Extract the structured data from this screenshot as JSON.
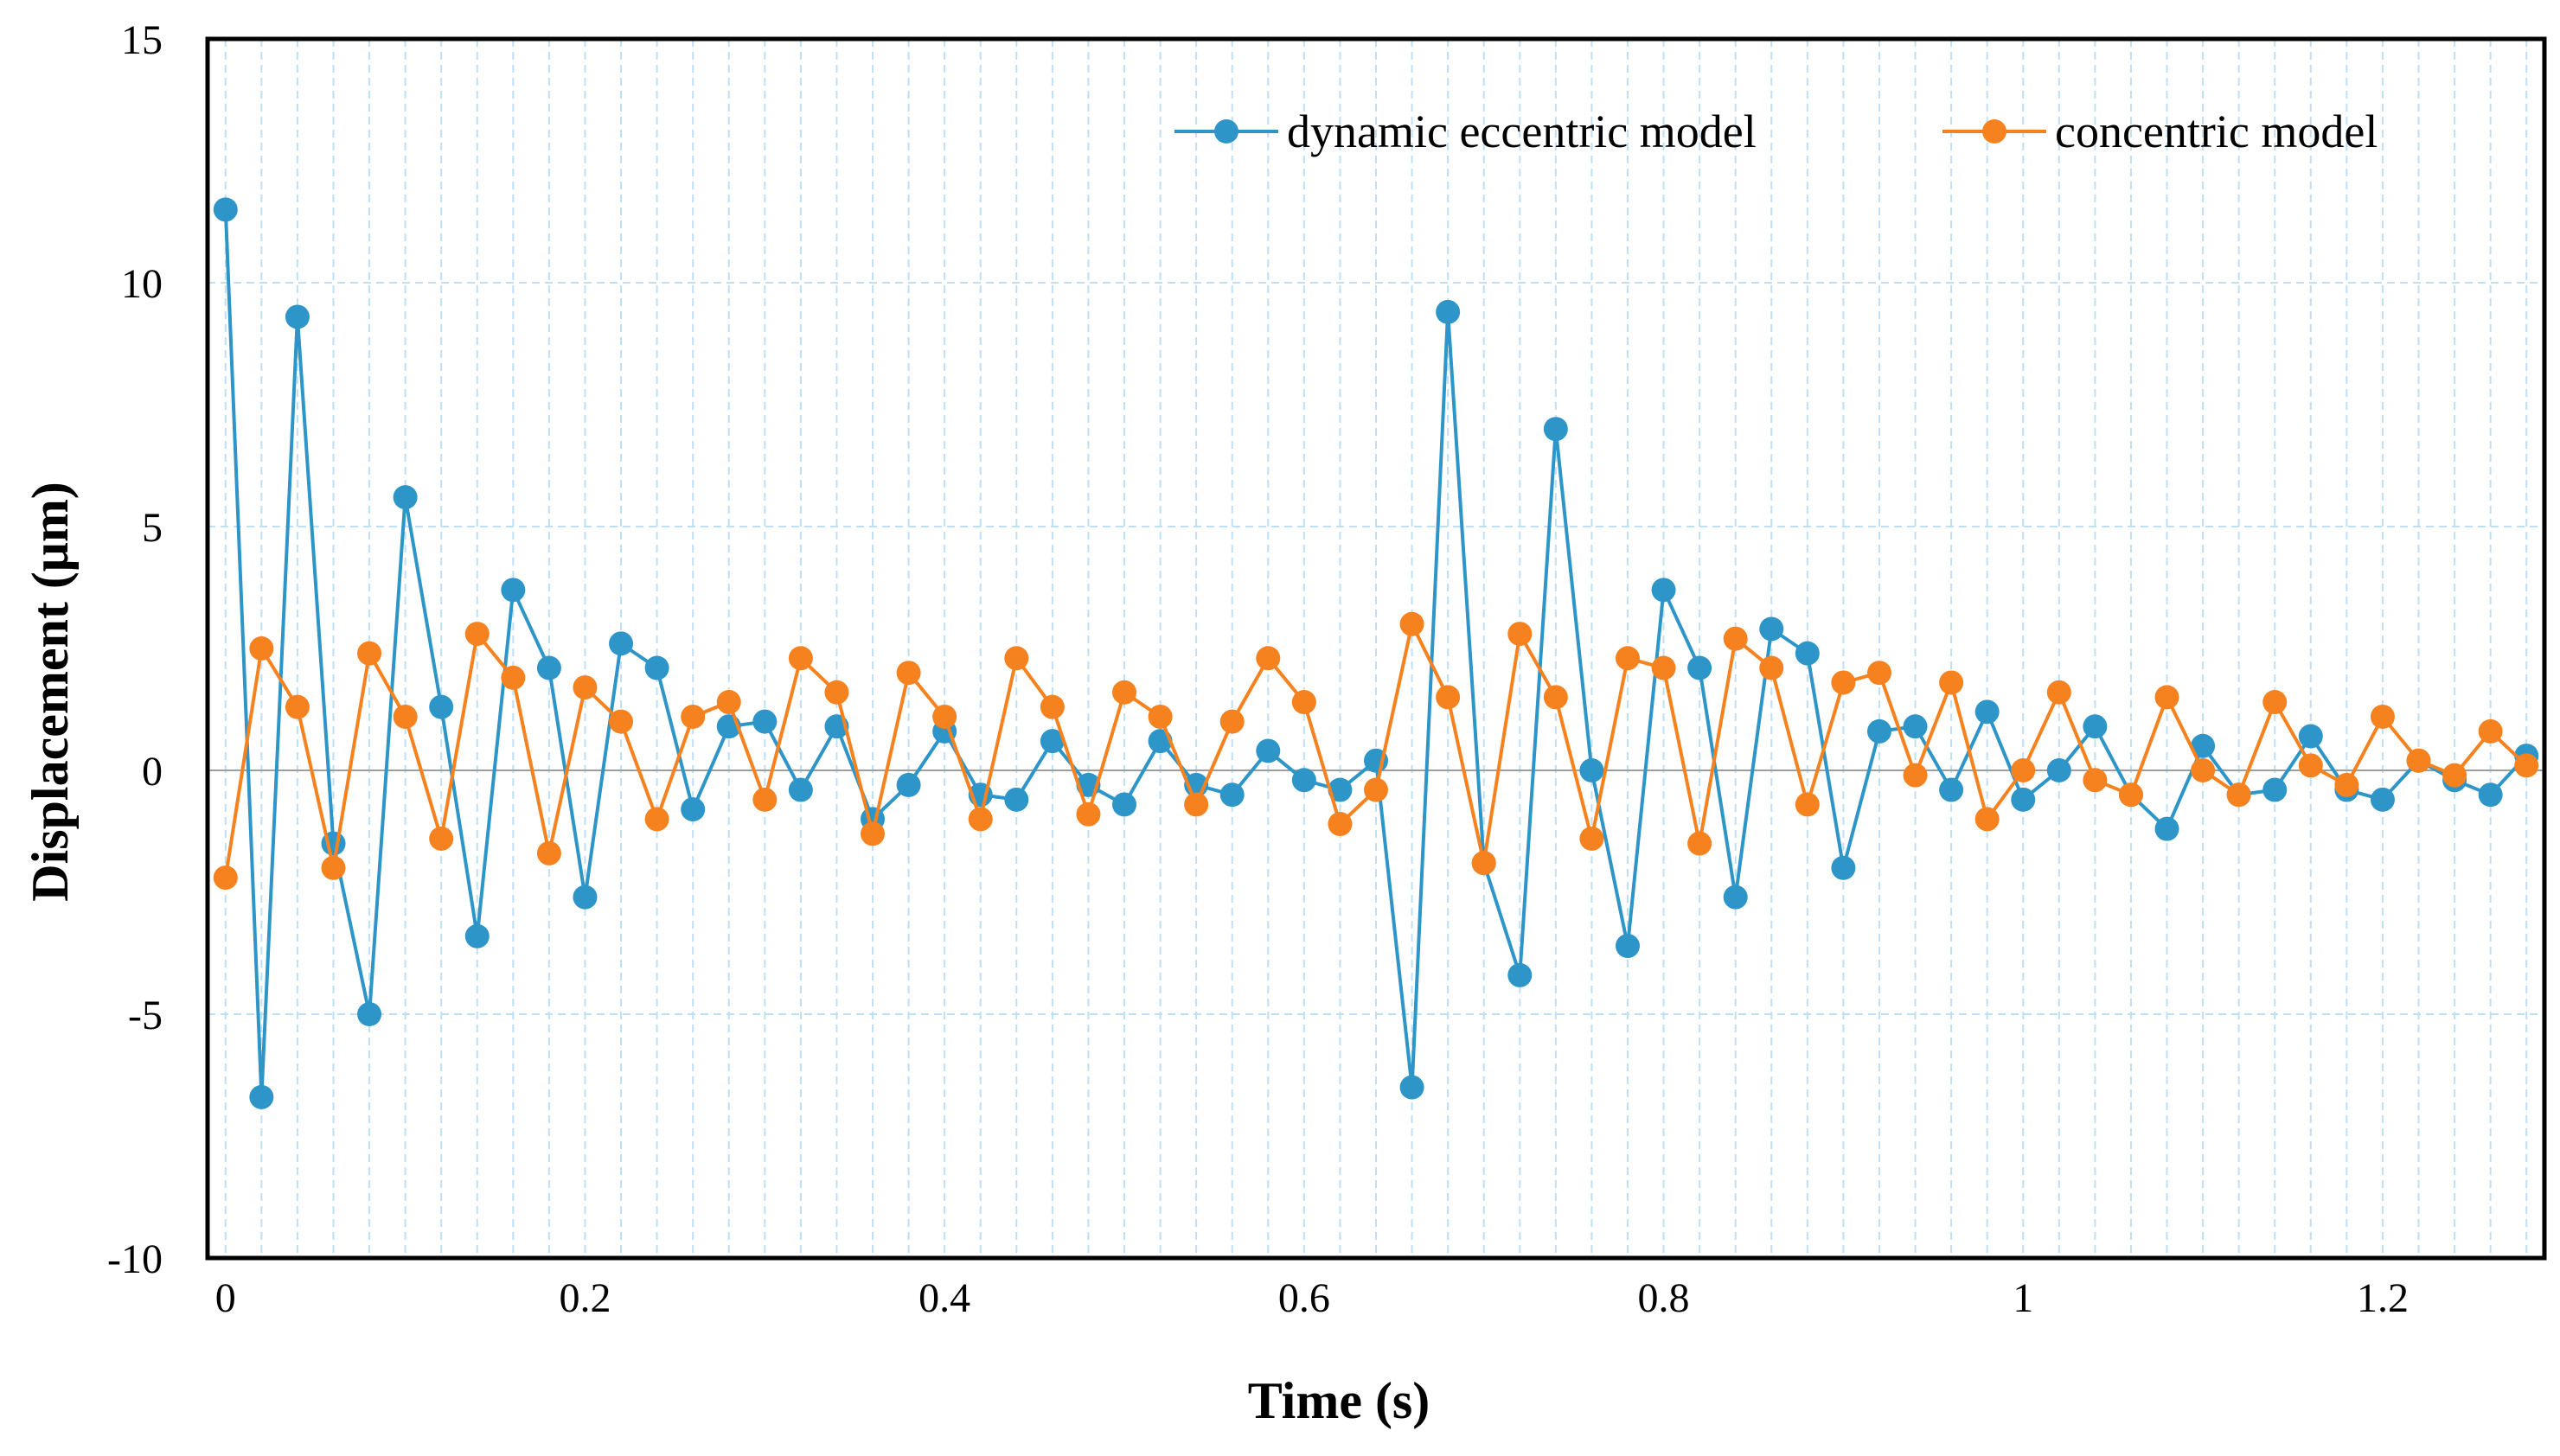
{
  "chart_data": {
    "type": "line",
    "title": "",
    "xlabel": "Time (s)",
    "ylabel": "Displacement (μm)",
    "xlim": [
      -0.01,
      1.29
    ],
    "ylim": [
      -10,
      15
    ],
    "xticks": [
      0,
      0.2,
      0.4,
      0.6,
      0.8,
      1,
      1.2
    ],
    "xtick_labels": [
      "0",
      "0.2",
      "0.4",
      "0.6",
      "0.8",
      "1",
      "1.2"
    ],
    "yticks": [
      -10,
      -5,
      0,
      5,
      10,
      15
    ],
    "ytick_labels": [
      "-10",
      "-5",
      "0",
      "5",
      "10",
      "15"
    ],
    "grid": "dashed vertical and horizontal",
    "legend_position": "top-right",
    "x": [
      0,
      0.02,
      0.04,
      0.06,
      0.08,
      0.1,
      0.12,
      0.14,
      0.16,
      0.18,
      0.2,
      0.22,
      0.24,
      0.26,
      0.28,
      0.3,
      0.32,
      0.34,
      0.36,
      0.38,
      0.4,
      0.42,
      0.44,
      0.46,
      0.48,
      0.5,
      0.52,
      0.54,
      0.56,
      0.58,
      0.6,
      0.62,
      0.64,
      0.66,
      0.68,
      0.7,
      0.72,
      0.74,
      0.76,
      0.78,
      0.8,
      0.82,
      0.84,
      0.86,
      0.88,
      0.9,
      0.92,
      0.94,
      0.96,
      0.98,
      1.0,
      1.02,
      1.04,
      1.06,
      1.08,
      1.1,
      1.12,
      1.14,
      1.16,
      1.18,
      1.2,
      1.22,
      1.24,
      1.26,
      1.28
    ],
    "series": [
      {
        "name": "dynamic eccentric model",
        "color": "#2e95c9",
        "values": [
          11.5,
          -6.7,
          9.3,
          -1.5,
          -5.0,
          5.6,
          1.3,
          -3.4,
          3.7,
          2.1,
          -2.6,
          2.6,
          2.1,
          -0.8,
          0.9,
          1.0,
          -0.4,
          0.9,
          -1.0,
          -0.3,
          0.8,
          -0.5,
          -0.6,
          0.6,
          -0.3,
          -0.7,
          0.6,
          -0.3,
          -0.5,
          0.4,
          -0.2,
          -0.4,
          0.2,
          -6.5,
          9.4,
          -1.9,
          -4.2,
          7.0,
          0.0,
          -3.6,
          3.7,
          2.1,
          -2.6,
          2.9,
          2.4,
          -2.0,
          0.8,
          0.9,
          -0.4,
          1.2,
          -0.6,
          0.0,
          0.9,
          -0.5,
          -1.2,
          0.5,
          -0.5,
          -0.4,
          0.7,
          -0.4,
          -0.6,
          0.2,
          -0.2,
          -0.5,
          0.3
        ]
      },
      {
        "name": "concentric model",
        "color": "#f5821f",
        "values": [
          -2.2,
          2.5,
          1.3,
          -2.0,
          2.4,
          1.1,
          -1.4,
          2.8,
          1.9,
          -1.7,
          1.7,
          1.0,
          -1.0,
          1.1,
          1.4,
          -0.6,
          2.3,
          1.6,
          -1.3,
          2.0,
          1.1,
          -1.0,
          2.3,
          1.3,
          -0.9,
          1.6,
          1.1,
          -0.7,
          1.0,
          2.3,
          1.4,
          -1.1,
          -0.4,
          3.0,
          1.5,
          -1.9,
          2.8,
          1.5,
          -1.4,
          2.3,
          2.1,
          -1.5,
          2.7,
          2.1,
          -0.7,
          1.8,
          2.0,
          -0.1,
          1.8,
          -1.0,
          0.0,
          1.6,
          -0.2,
          -0.5,
          1.5,
          0.0,
          -0.5,
          1.4,
          0.1,
          -0.3,
          1.1,
          0.2,
          -0.1,
          0.8,
          0.1
        ]
      }
    ]
  }
}
